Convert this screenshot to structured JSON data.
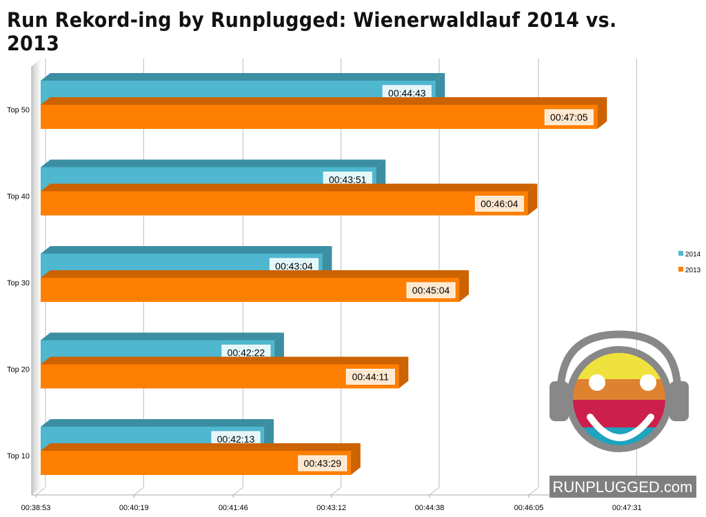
{
  "title": "Run Rekord-ing by Runplugged: Wienerwaldlauf 2014 vs. 2013",
  "logo_text": "RUNPLUGGED.com",
  "chart_data": {
    "type": "bar",
    "orientation": "horizontal",
    "three_d": true,
    "title": "Run Rekord-ing by Runplugged: Wienerwaldlauf 2014 vs. 2013",
    "categories": [
      "Top 50",
      "Top 40",
      "Top 30",
      "Top 20",
      "Top 10"
    ],
    "series": [
      {
        "name": "2014",
        "color": "#4fb7cf",
        "values": [
          "00:44:43",
          "00:43:51",
          "00:43:04",
          "00:42:22",
          "00:42:13"
        ]
      },
      {
        "name": "2013",
        "color": "#ff7f00",
        "values": [
          "00:47:05",
          "00:46:04",
          "00:45:04",
          "00:44:11",
          "00:43:29"
        ]
      }
    ],
    "x_ticks": [
      "00:38:53",
      "00:40:19",
      "00:41:46",
      "00:43:12",
      "00:44:38",
      "00:46:05",
      "00:47:31"
    ],
    "xlim": [
      "00:38:53",
      "00:47:31"
    ],
    "grid": true,
    "legend": "right"
  }
}
